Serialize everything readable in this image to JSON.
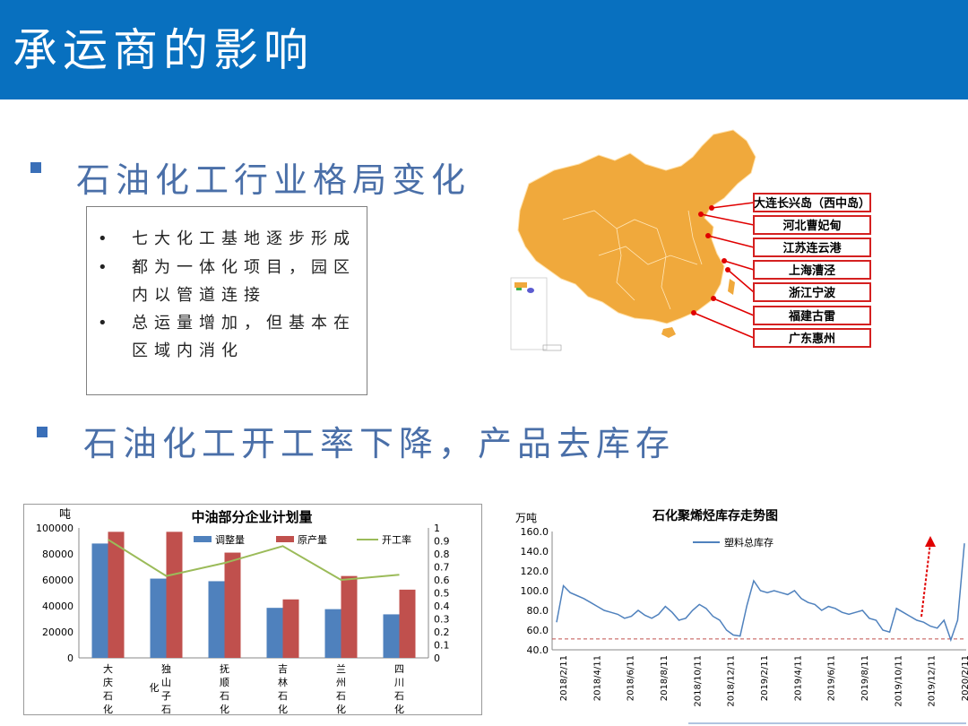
{
  "title": "承运商的影响",
  "section1": {
    "heading": "石油化工行业格局变化",
    "bullets": [
      {
        "dot": "•",
        "text": "七大化工基地逐步形成"
      },
      {
        "dot": "•",
        "text": "都为一体化项目，园区内以管道连接"
      },
      {
        "dot": "•",
        "text": "总运量增加，但基本在区域内消化"
      }
    ]
  },
  "map": {
    "labels": [
      "大连长兴岛（西中岛）",
      "河北曹妃甸",
      "江苏连云港",
      "上海漕泾",
      "浙江宁波",
      "福建古雷",
      "广东惠州"
    ],
    "colors": {
      "land": "#f0a93c",
      "marker": "#e00000",
      "label_border": "#d42020"
    }
  },
  "section2": {
    "heading": "石油化工开工率下降，产品去库存"
  },
  "chart_data": [
    {
      "type": "bar",
      "title": "中油部分企业计划量",
      "ylabel": "吨",
      "ylim": [
        0,
        100000
      ],
      "y_ticks": [
        "0",
        "20000",
        "40000",
        "60000",
        "80000",
        "100000"
      ],
      "y2lim": [
        0,
        1
      ],
      "y2_ticks": [
        "0",
        "0.1",
        "0.2",
        "0.3",
        "0.4",
        "0.5",
        "0.6",
        "0.7",
        "0.8",
        "0.9",
        "1"
      ],
      "categories": [
        "大庆石化",
        "独山子石化",
        "抚顺石化",
        "吉林石化",
        "兰州石化",
        "四川石化"
      ],
      "category_lines": [
        [
          "大",
          "庆",
          "石",
          "化"
        ],
        [
          "独",
          "山",
          "子",
          "石"
        ],
        [
          "抚",
          "顺",
          "石",
          "化"
        ],
        [
          "吉",
          "林",
          "石",
          "化"
        ],
        [
          "兰",
          "州",
          "石",
          "化"
        ],
        [
          "四",
          "川",
          "石",
          "化"
        ]
      ],
      "extra_label": "化",
      "series": [
        {
          "name": "调整量",
          "type": "bar",
          "color": "#4f81bd",
          "values": [
            88000,
            61000,
            59000,
            38500,
            37500,
            33500
          ]
        },
        {
          "name": "原产量",
          "type": "bar",
          "color": "#c0504d",
          "values": [
            97000,
            97000,
            81000,
            45000,
            63000,
            52500
          ]
        },
        {
          "name": "开工率",
          "type": "line",
          "axis": "right",
          "color": "#9bbb59",
          "values": [
            0.91,
            0.63,
            0.73,
            0.86,
            0.6,
            0.64
          ]
        }
      ],
      "legend": "top-right"
    },
    {
      "type": "line",
      "title": "石化聚烯烃库存走势图",
      "ylabel": "万吨",
      "ylim": [
        40,
        160
      ],
      "y_ticks": [
        "40.0",
        "60.0",
        "80.0",
        "100.0",
        "120.0",
        "140.0",
        "160.0"
      ],
      "x_ticks": [
        "2018/2/11",
        "2018/4/11",
        "2018/6/11",
        "2018/8/11",
        "2018/10/11",
        "2018/12/11",
        "2019/2/11",
        "2019/4/11",
        "2019/6/11",
        "2019/8/11",
        "2019/10/11",
        "2019/12/11",
        "2020/2/11"
      ],
      "series": [
        {
          "name": "塑料总库存",
          "color": "#4f81bd",
          "values": [
            68,
            105,
            98,
            95,
            92,
            88,
            84,
            80,
            78,
            76,
            72,
            74,
            80,
            75,
            72,
            76,
            84,
            78,
            70,
            72,
            80,
            86,
            82,
            74,
            70,
            60,
            55,
            54,
            85,
            110,
            100,
            98,
            100,
            98,
            96,
            100,
            92,
            88,
            86,
            80,
            84,
            82,
            78,
            76,
            78,
            80,
            72,
            70,
            60,
            58,
            82,
            78,
            74,
            70,
            68,
            64,
            62,
            70,
            50,
            70,
            148
          ]
        }
      ],
      "annotations": {
        "baseline": 51,
        "arrow_color": "#e00000",
        "baseline_color": "#c0504d"
      },
      "legend": "top-left"
    }
  ]
}
